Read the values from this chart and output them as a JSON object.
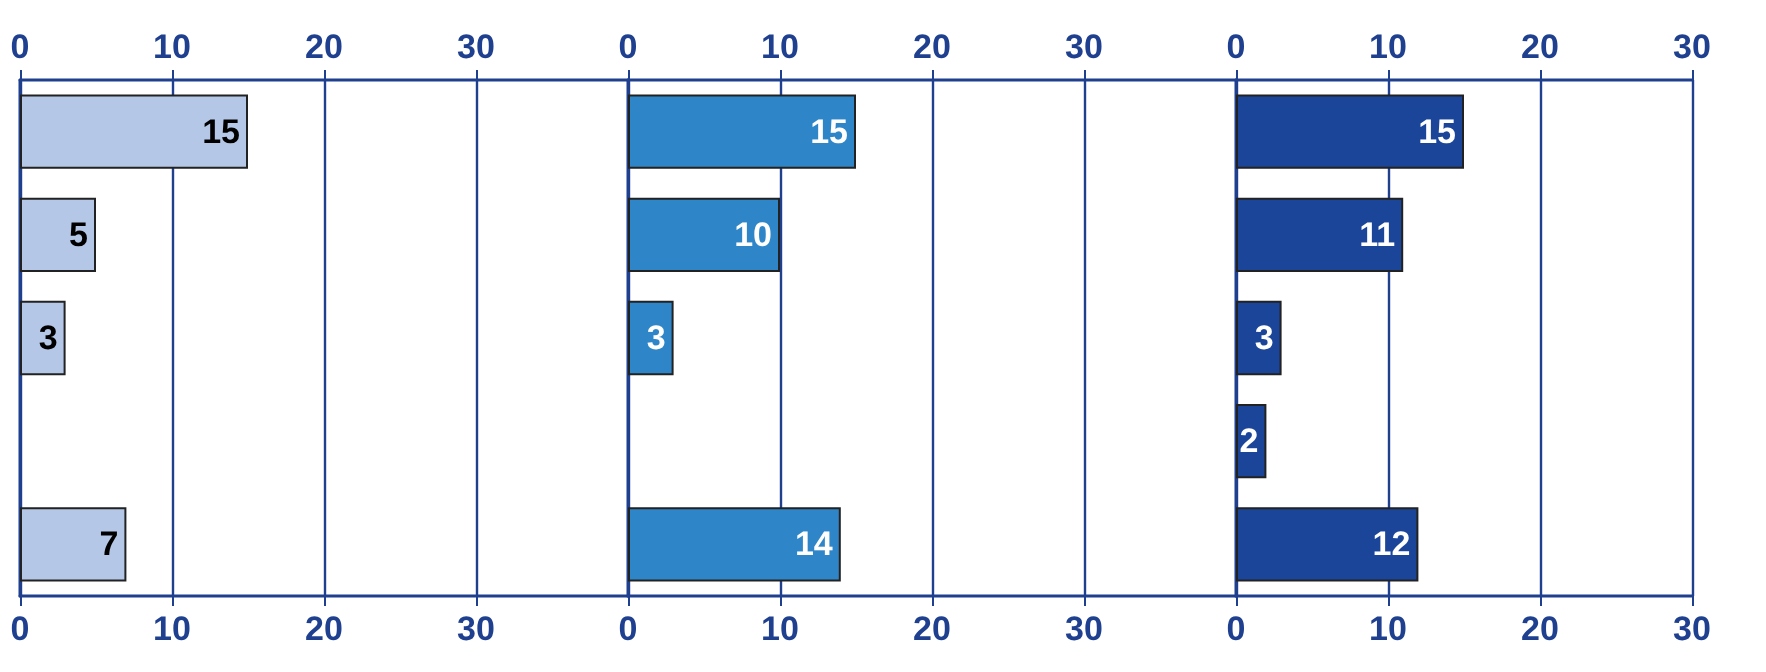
{
  "chart_data": [
    {
      "type": "bar",
      "orientation": "horizontal",
      "categories": [
        null,
        null,
        null,
        null,
        null
      ],
      "series": [
        {
          "color": "#b4c7e7",
          "values": [
            15,
            5,
            3,
            null,
            7
          ]
        }
      ],
      "xlim": [
        0,
        40
      ],
      "xticks": [
        0,
        10,
        20,
        30
      ],
      "x2lim": [
        0,
        40
      ],
      "x2ticks": [
        0,
        10,
        20,
        30
      ],
      "grid": "x",
      "data_labels": true
    },
    {
      "type": "bar",
      "orientation": "horizontal",
      "categories": [
        null,
        null,
        null,
        null,
        null
      ],
      "series": [
        {
          "color": "#2e86c8",
          "values": [
            15,
            10,
            3,
            null,
            14
          ]
        }
      ],
      "xlim": [
        0,
        40
      ],
      "xticks": [
        0,
        10,
        20,
        30
      ],
      "x2lim": [
        0,
        40
      ],
      "x2ticks": [
        0,
        10,
        20,
        30
      ],
      "grid": "x",
      "data_labels": true
    },
    {
      "type": "bar",
      "orientation": "horizontal",
      "categories": [
        null,
        null,
        null,
        null,
        null
      ],
      "series": [
        {
          "color": "#1a4599",
          "values": [
            15,
            11,
            3,
            2,
            12
          ]
        }
      ],
      "xlim": [
        0,
        30
      ],
      "xticks": [
        0,
        10,
        20,
        30
      ],
      "x2lim": [
        0,
        30
      ],
      "x2ticks": [
        0,
        10,
        20,
        30
      ],
      "grid": "x",
      "data_labels": true
    }
  ]
}
